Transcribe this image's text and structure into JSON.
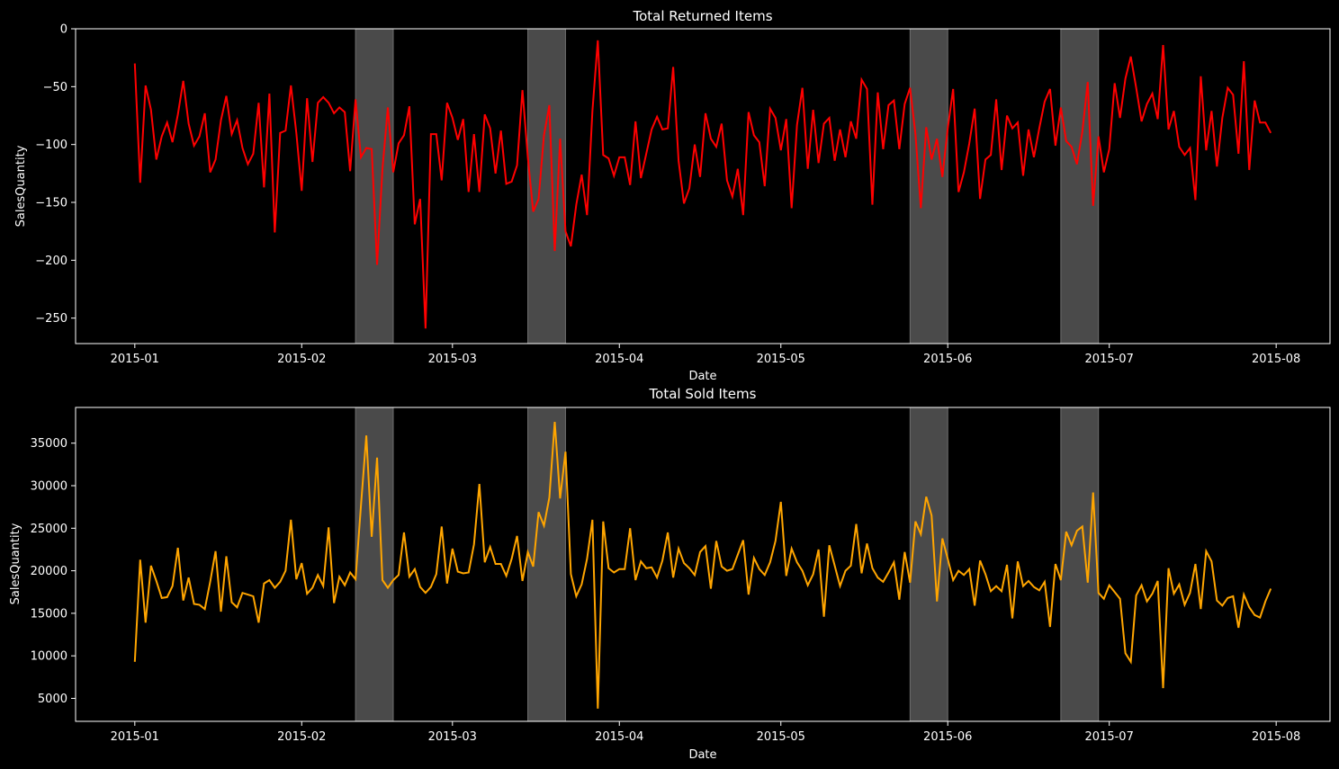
{
  "chart_data": [
    {
      "type": "line",
      "title": "Total Returned Items",
      "xlabel": "Date",
      "ylabel": "SalesQuantity",
      "x_start": "2015-01-01",
      "x_end": "2015-07-31",
      "xlim": [
        "2014-12-21",
        "2015-08-11"
      ],
      "ylim": [
        -272,
        0
      ],
      "x_ticks": [
        "2015-01",
        "2015-02",
        "2015-03",
        "2015-04",
        "2015-05",
        "2015-06",
        "2015-07",
        "2015-08"
      ],
      "y_ticks": [
        0,
        -50,
        -100,
        -150,
        -200,
        -250
      ],
      "y_tick_labels": [
        "0",
        "−50",
        "−100",
        "−150",
        "−200",
        "−250"
      ],
      "grid": false,
      "background": "#000000",
      "line_color": "#ff0000",
      "shaded_regions": [
        {
          "start": "2015-02-11",
          "end": "2015-02-18"
        },
        {
          "start": "2015-03-15",
          "end": "2015-03-22"
        },
        {
          "start": "2015-05-25",
          "end": "2015-06-01"
        },
        {
          "start": "2015-06-22",
          "end": "2015-06-29"
        }
      ],
      "shade_color": "#4a4a4a",
      "series": [
        {
          "values": [
            -30,
            -133,
            -49,
            -70,
            -113,
            -93,
            -81,
            -98,
            -74,
            -45,
            -82,
            -101,
            -93,
            -73,
            -124,
            -113,
            -79,
            -58,
            -91,
            -79,
            -103,
            -117,
            -108,
            -64,
            -137,
            -56,
            -176,
            -90,
            -88,
            -49,
            -90,
            -140,
            -60,
            -115,
            -64,
            -59,
            -64,
            -73,
            -68,
            -72,
            -123,
            -61,
            -111,
            -103,
            -104,
            -204,
            -121,
            -68,
            -124,
            -99,
            -92,
            -67,
            -169,
            -147,
            -259,
            -91,
            -91,
            -131,
            -64,
            -77,
            -96,
            -78,
            -141,
            -91,
            -141,
            -74,
            -86,
            -125,
            -88,
            -134,
            -132,
            -118,
            -53,
            -111,
            -158,
            -147,
            -92,
            -66,
            -192,
            -95,
            -175,
            -188,
            -152,
            -126,
            -161,
            -71,
            -10,
            -109,
            -112,
            -127,
            -111,
            -111,
            -135,
            -80,
            -129,
            -108,
            -87,
            -76,
            -87,
            -86,
            -33,
            -114,
            -151,
            -138,
            -100,
            -128,
            -73,
            -95,
            -102,
            -82,
            -131,
            -145,
            -121,
            -161,
            -72,
            -92,
            -98,
            -136,
            -69,
            -77,
            -105,
            -78,
            -155,
            -83,
            -51,
            -121,
            -70,
            -116,
            -82,
            -77,
            -114,
            -87,
            -111,
            -80,
            -95,
            -44,
            -52,
            -152,
            -55,
            -104,
            -66,
            -62,
            -104,
            -65,
            -51,
            -91,
            -155,
            -85,
            -113,
            -95,
            -128,
            -86,
            -52,
            -141,
            -124,
            -99,
            -69,
            -147,
            -113,
            -109,
            -61,
            -122,
            -75,
            -86,
            -81,
            -127,
            -87,
            -111,
            -86,
            -63,
            -52,
            -101,
            -68,
            -97,
            -102,
            -117,
            -89,
            -46,
            -153,
            -93,
            -124,
            -104,
            -47,
            -77,
            -43,
            -24,
            -51,
            -80,
            -65,
            -56,
            -78,
            -14,
            -87,
            -71,
            -102,
            -109,
            -103,
            -148,
            -41,
            -105,
            -71,
            -119,
            -77,
            -51,
            -57,
            -108,
            -28,
            -122,
            -62,
            -81,
            -81,
            -90
          ]
        }
      ]
    },
    {
      "type": "line",
      "title": "Total Sold Items",
      "xlabel": "Date",
      "ylabel": "SalesQuantity",
      "x_start": "2015-01-01",
      "x_end": "2015-07-31",
      "xlim": [
        "2014-12-21",
        "2015-08-11"
      ],
      "ylim": [
        2300,
        39200
      ],
      "x_ticks": [
        "2015-01",
        "2015-02",
        "2015-03",
        "2015-04",
        "2015-05",
        "2015-06",
        "2015-07",
        "2015-08"
      ],
      "y_ticks": [
        5000,
        10000,
        15000,
        20000,
        25000,
        30000,
        35000
      ],
      "y_tick_labels": [
        "5000",
        "10000",
        "15000",
        "20000",
        "25000",
        "30000",
        "35000"
      ],
      "grid": false,
      "background": "#000000",
      "line_color": "#ffa500",
      "shaded_regions": [
        {
          "start": "2015-02-11",
          "end": "2015-02-18"
        },
        {
          "start": "2015-03-15",
          "end": "2015-03-22"
        },
        {
          "start": "2015-05-25",
          "end": "2015-06-01"
        },
        {
          "start": "2015-06-22",
          "end": "2015-06-29"
        }
      ],
      "shade_color": "#4a4a4a",
      "series": [
        {
          "values": [
            9300,
            21300,
            13900,
            20600,
            18800,
            16800,
            16900,
            18200,
            22700,
            16500,
            19200,
            16100,
            16000,
            15500,
            18700,
            22300,
            15200,
            21700,
            16300,
            15700,
            17400,
            17200,
            17000,
            13900,
            18500,
            18900,
            18000,
            18700,
            20000,
            26000,
            19000,
            20900,
            17300,
            18000,
            19500,
            18200,
            25100,
            16200,
            19300,
            18300,
            19800,
            19000,
            27600,
            35900,
            24000,
            33300,
            18900,
            18000,
            18900,
            19500,
            24500,
            19300,
            20200,
            18100,
            17400,
            18100,
            19600,
            25200,
            18500,
            22600,
            19900,
            19700,
            19800,
            23100,
            30200,
            21000,
            22800,
            20800,
            20800,
            19400,
            21400,
            24100,
            18800,
            22200,
            20500,
            26900,
            25300,
            28600,
            37500,
            28500,
            34000,
            19600,
            17000,
            18400,
            21400,
            26000,
            3800,
            25800,
            20300,
            19800,
            20200,
            20200,
            25000,
            18900,
            21100,
            20300,
            20400,
            19200,
            21200,
            24500,
            19200,
            22600,
            20900,
            20300,
            19500,
            22200,
            22900,
            17900,
            23500,
            20500,
            20000,
            20200,
            21900,
            23600,
            17200,
            21500,
            20200,
            19500,
            21000,
            23500,
            28100,
            19400,
            22600,
            21000,
            20000,
            18300,
            19600,
            22500,
            14600,
            23000,
            20600,
            18200,
            20000,
            20600,
            25500,
            19700,
            23200,
            20300,
            19200,
            18700,
            19800,
            21000,
            16600,
            22200,
            18600,
            25800,
            24300,
            28700,
            26500,
            16400,
            23800,
            21400,
            18900,
            20000,
            19500,
            20200,
            15900,
            21200,
            19600,
            17600,
            18200,
            17600,
            20700,
            14400,
            21100,
            18200,
            18800,
            18100,
            17700,
            18700,
            13400,
            20800,
            18900,
            24600,
            23000,
            24700,
            25200,
            18600,
            29200,
            17400,
            16700,
            18300,
            17500,
            16700,
            10300,
            9300,
            17100,
            18300,
            16400,
            17300,
            18800,
            6200,
            20300,
            17300,
            18400,
            16000,
            17400,
            20800,
            15500,
            22300,
            21100,
            16500,
            15900,
            16800,
            17000,
            13300,
            17200,
            15700,
            14800,
            14500,
            16400,
            17900
          ]
        }
      ]
    }
  ]
}
